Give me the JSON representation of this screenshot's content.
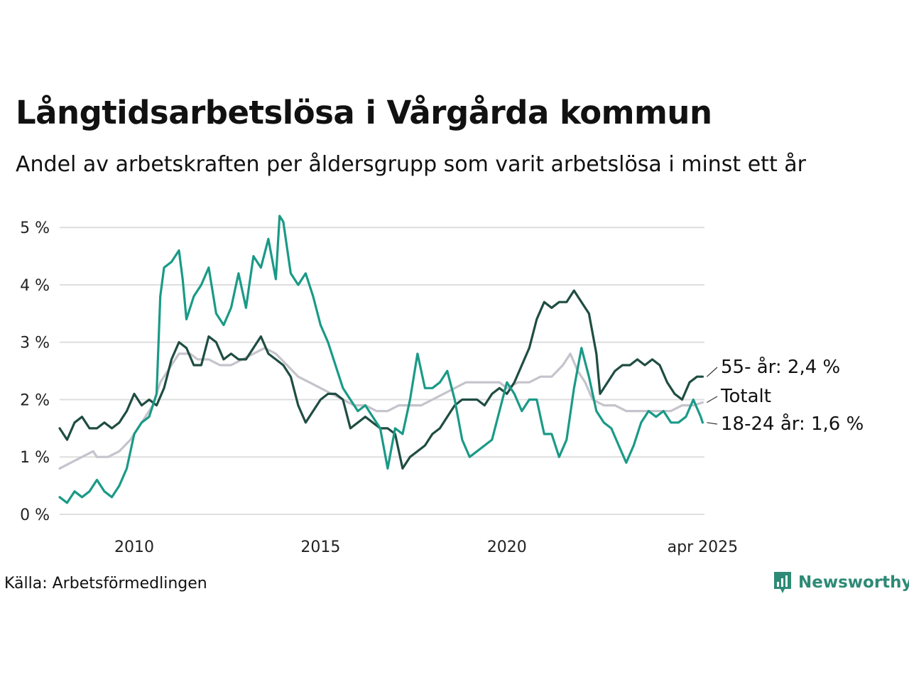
{
  "title": "Långtidsarbetslösa i Vårgårda kommun",
  "subtitle": "Andel av arbetskraften per åldersgrupp som varit arbetslösa i minst ett år",
  "source": "Källa: Arbetsförmedlingen",
  "brand": {
    "name": "Newsworthy",
    "icon": "bar-chart-logo-icon",
    "color": "#2e8a76"
  },
  "chart_data": {
    "type": "line",
    "x_unit": "date (year)",
    "y_unit": "percent",
    "ylim": [
      0,
      5.25
    ],
    "xlim": [
      2008.0,
      2025.3
    ],
    "y_ticks": [
      0,
      1,
      2,
      3,
      4,
      5
    ],
    "y_tick_labels": [
      "0 %",
      "1 %",
      "2 %",
      "3 %",
      "4 %",
      "5 %"
    ],
    "x_ticks": [
      2010,
      2015,
      2020,
      2025.25
    ],
    "x_tick_labels": [
      "2010",
      "2015",
      "2020",
      "apr 2025"
    ],
    "grid": "horizontal",
    "legend": "direct labels at line ends (right)",
    "series": [
      {
        "name": "Totalt",
        "label": "Totalt",
        "color": "#c5c3cb",
        "points": [
          [
            2008.0,
            0.8
          ],
          [
            2008.3,
            0.9
          ],
          [
            2008.6,
            1.0
          ],
          [
            2008.9,
            1.1
          ],
          [
            2009.0,
            1.0
          ],
          [
            2009.3,
            1.0
          ],
          [
            2009.6,
            1.1
          ],
          [
            2009.9,
            1.3
          ],
          [
            2010.2,
            1.6
          ],
          [
            2010.5,
            1.9
          ],
          [
            2010.7,
            2.3
          ],
          [
            2011.0,
            2.6
          ],
          [
            2011.2,
            2.8
          ],
          [
            2011.5,
            2.8
          ],
          [
            2011.7,
            2.7
          ],
          [
            2012.0,
            2.7
          ],
          [
            2012.3,
            2.6
          ],
          [
            2012.6,
            2.6
          ],
          [
            2012.9,
            2.7
          ],
          [
            2013.2,
            2.8
          ],
          [
            2013.5,
            2.9
          ],
          [
            2013.8,
            2.8
          ],
          [
            2014.1,
            2.6
          ],
          [
            2014.4,
            2.4
          ],
          [
            2014.7,
            2.3
          ],
          [
            2015.0,
            2.2
          ],
          [
            2015.3,
            2.1
          ],
          [
            2015.6,
            2.0
          ],
          [
            2015.9,
            1.9
          ],
          [
            2016.2,
            1.9
          ],
          [
            2016.5,
            1.8
          ],
          [
            2016.8,
            1.8
          ],
          [
            2017.1,
            1.9
          ],
          [
            2017.4,
            1.9
          ],
          [
            2017.7,
            1.9
          ],
          [
            2018.0,
            2.0
          ],
          [
            2018.3,
            2.1
          ],
          [
            2018.6,
            2.2
          ],
          [
            2018.9,
            2.3
          ],
          [
            2019.2,
            2.3
          ],
          [
            2019.5,
            2.3
          ],
          [
            2019.8,
            2.3
          ],
          [
            2020.0,
            2.2
          ],
          [
            2020.3,
            2.3
          ],
          [
            2020.6,
            2.3
          ],
          [
            2020.9,
            2.4
          ],
          [
            2021.2,
            2.4
          ],
          [
            2021.5,
            2.6
          ],
          [
            2021.7,
            2.8
          ],
          [
            2021.9,
            2.5
          ],
          [
            2022.1,
            2.3
          ],
          [
            2022.3,
            2.0
          ],
          [
            2022.6,
            1.9
          ],
          [
            2022.9,
            1.9
          ],
          [
            2023.2,
            1.8
          ],
          [
            2023.5,
            1.8
          ],
          [
            2023.8,
            1.8
          ],
          [
            2024.1,
            1.8
          ],
          [
            2024.4,
            1.8
          ],
          [
            2024.7,
            1.9
          ],
          [
            2025.0,
            1.9
          ],
          [
            2025.25,
            1.95
          ]
        ]
      },
      {
        "name": "55- år",
        "label": "55- år: 2,4 %",
        "color": "#1f4d42",
        "points": [
          [
            2008.0,
            1.5
          ],
          [
            2008.2,
            1.3
          ],
          [
            2008.4,
            1.6
          ],
          [
            2008.6,
            1.7
          ],
          [
            2008.8,
            1.5
          ],
          [
            2009.0,
            1.5
          ],
          [
            2009.2,
            1.6
          ],
          [
            2009.4,
            1.5
          ],
          [
            2009.6,
            1.6
          ],
          [
            2009.8,
            1.8
          ],
          [
            2010.0,
            2.1
          ],
          [
            2010.2,
            1.9
          ],
          [
            2010.4,
            2.0
          ],
          [
            2010.6,
            1.9
          ],
          [
            2010.8,
            2.2
          ],
          [
            2011.0,
            2.7
          ],
          [
            2011.2,
            3.0
          ],
          [
            2011.4,
            2.9
          ],
          [
            2011.6,
            2.6
          ],
          [
            2011.8,
            2.6
          ],
          [
            2012.0,
            3.1
          ],
          [
            2012.2,
            3.0
          ],
          [
            2012.4,
            2.7
          ],
          [
            2012.6,
            2.8
          ],
          [
            2012.8,
            2.7
          ],
          [
            2013.0,
            2.7
          ],
          [
            2013.2,
            2.9
          ],
          [
            2013.4,
            3.1
          ],
          [
            2013.6,
            2.8
          ],
          [
            2013.8,
            2.7
          ],
          [
            2014.0,
            2.6
          ],
          [
            2014.2,
            2.4
          ],
          [
            2014.4,
            1.9
          ],
          [
            2014.6,
            1.6
          ],
          [
            2014.8,
            1.8
          ],
          [
            2015.0,
            2.0
          ],
          [
            2015.2,
            2.1
          ],
          [
            2015.4,
            2.1
          ],
          [
            2015.6,
            2.0
          ],
          [
            2015.8,
            1.5
          ],
          [
            2016.0,
            1.6
          ],
          [
            2016.2,
            1.7
          ],
          [
            2016.4,
            1.6
          ],
          [
            2016.6,
            1.5
          ],
          [
            2016.8,
            1.5
          ],
          [
            2017.0,
            1.4
          ],
          [
            2017.2,
            0.8
          ],
          [
            2017.4,
            1.0
          ],
          [
            2017.6,
            1.1
          ],
          [
            2017.8,
            1.2
          ],
          [
            2018.0,
            1.4
          ],
          [
            2018.2,
            1.5
          ],
          [
            2018.4,
            1.7
          ],
          [
            2018.6,
            1.9
          ],
          [
            2018.8,
            2.0
          ],
          [
            2019.0,
            2.0
          ],
          [
            2019.2,
            2.0
          ],
          [
            2019.4,
            1.9
          ],
          [
            2019.6,
            2.1
          ],
          [
            2019.8,
            2.2
          ],
          [
            2020.0,
            2.1
          ],
          [
            2020.2,
            2.3
          ],
          [
            2020.4,
            2.6
          ],
          [
            2020.6,
            2.9
          ],
          [
            2020.8,
            3.4
          ],
          [
            2021.0,
            3.7
          ],
          [
            2021.2,
            3.6
          ],
          [
            2021.4,
            3.7
          ],
          [
            2021.6,
            3.7
          ],
          [
            2021.8,
            3.9
          ],
          [
            2022.0,
            3.7
          ],
          [
            2022.2,
            3.5
          ],
          [
            2022.4,
            2.8
          ],
          [
            2022.5,
            2.1
          ],
          [
            2022.7,
            2.3
          ],
          [
            2022.9,
            2.5
          ],
          [
            2023.1,
            2.6
          ],
          [
            2023.3,
            2.6
          ],
          [
            2023.5,
            2.7
          ],
          [
            2023.7,
            2.6
          ],
          [
            2023.9,
            2.7
          ],
          [
            2024.1,
            2.6
          ],
          [
            2024.3,
            2.3
          ],
          [
            2024.5,
            2.1
          ],
          [
            2024.7,
            2.0
          ],
          [
            2024.9,
            2.3
          ],
          [
            2025.1,
            2.4
          ],
          [
            2025.25,
            2.4
          ]
        ]
      },
      {
        "name": "18-24 år",
        "label": "18-24 år: 1,6 %",
        "color": "#1a9a87",
        "points": [
          [
            2008.0,
            0.3
          ],
          [
            2008.2,
            0.2
          ],
          [
            2008.4,
            0.4
          ],
          [
            2008.6,
            0.3
          ],
          [
            2008.8,
            0.4
          ],
          [
            2009.0,
            0.6
          ],
          [
            2009.2,
            0.4
          ],
          [
            2009.4,
            0.3
          ],
          [
            2009.6,
            0.5
          ],
          [
            2009.8,
            0.8
          ],
          [
            2010.0,
            1.4
          ],
          [
            2010.2,
            1.6
          ],
          [
            2010.4,
            1.7
          ],
          [
            2010.6,
            2.1
          ],
          [
            2010.7,
            3.8
          ],
          [
            2010.8,
            4.3
          ],
          [
            2011.0,
            4.4
          ],
          [
            2011.1,
            4.5
          ],
          [
            2011.2,
            4.6
          ],
          [
            2011.3,
            4.1
          ],
          [
            2011.4,
            3.4
          ],
          [
            2011.6,
            3.8
          ],
          [
            2011.8,
            4.0
          ],
          [
            2012.0,
            4.3
          ],
          [
            2012.2,
            3.5
          ],
          [
            2012.4,
            3.3
          ],
          [
            2012.6,
            3.6
          ],
          [
            2012.8,
            4.2
          ],
          [
            2013.0,
            3.6
          ],
          [
            2013.2,
            4.5
          ],
          [
            2013.4,
            4.3
          ],
          [
            2013.6,
            4.8
          ],
          [
            2013.8,
            4.1
          ],
          [
            2013.9,
            5.2
          ],
          [
            2014.0,
            5.1
          ],
          [
            2014.2,
            4.2
          ],
          [
            2014.4,
            4.0
          ],
          [
            2014.6,
            4.2
          ],
          [
            2014.8,
            3.8
          ],
          [
            2015.0,
            3.3
          ],
          [
            2015.2,
            3.0
          ],
          [
            2015.4,
            2.6
          ],
          [
            2015.6,
            2.2
          ],
          [
            2015.8,
            2.0
          ],
          [
            2016.0,
            1.8
          ],
          [
            2016.2,
            1.9
          ],
          [
            2016.4,
            1.7
          ],
          [
            2016.6,
            1.5
          ],
          [
            2016.8,
            0.8
          ],
          [
            2017.0,
            1.5
          ],
          [
            2017.2,
            1.4
          ],
          [
            2017.4,
            2.0
          ],
          [
            2017.6,
            2.8
          ],
          [
            2017.8,
            2.2
          ],
          [
            2018.0,
            2.2
          ],
          [
            2018.2,
            2.3
          ],
          [
            2018.4,
            2.5
          ],
          [
            2018.6,
            2.0
          ],
          [
            2018.8,
            1.3
          ],
          [
            2019.0,
            1.0
          ],
          [
            2019.2,
            1.1
          ],
          [
            2019.4,
            1.2
          ],
          [
            2019.6,
            1.3
          ],
          [
            2019.8,
            1.8
          ],
          [
            2020.0,
            2.3
          ],
          [
            2020.2,
            2.1
          ],
          [
            2020.4,
            1.8
          ],
          [
            2020.6,
            2.0
          ],
          [
            2020.8,
            2.0
          ],
          [
            2021.0,
            1.4
          ],
          [
            2021.2,
            1.4
          ],
          [
            2021.4,
            1.0
          ],
          [
            2021.6,
            1.3
          ],
          [
            2021.8,
            2.2
          ],
          [
            2022.0,
            2.9
          ],
          [
            2022.2,
            2.4
          ],
          [
            2022.4,
            1.8
          ],
          [
            2022.6,
            1.6
          ],
          [
            2022.8,
            1.5
          ],
          [
            2023.0,
            1.2
          ],
          [
            2023.2,
            0.9
          ],
          [
            2023.4,
            1.2
          ],
          [
            2023.6,
            1.6
          ],
          [
            2023.8,
            1.8
          ],
          [
            2024.0,
            1.7
          ],
          [
            2024.2,
            1.8
          ],
          [
            2024.4,
            1.6
          ],
          [
            2024.6,
            1.6
          ],
          [
            2024.8,
            1.7
          ],
          [
            2025.0,
            2.0
          ],
          [
            2025.2,
            1.7
          ],
          [
            2025.25,
            1.6
          ]
        ]
      }
    ]
  }
}
